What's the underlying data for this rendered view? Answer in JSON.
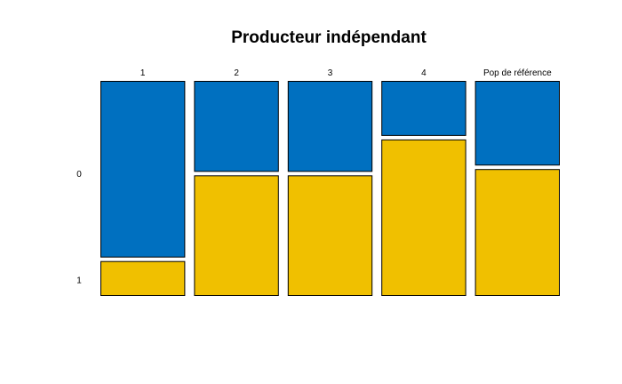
{
  "chart_data": {
    "type": "mosaic",
    "title": "Producteur indépendant",
    "categories": [
      "1",
      "2",
      "3",
      "4",
      "Pop de référence"
    ],
    "row_labels": [
      "0",
      "1"
    ],
    "series": [
      {
        "name": "0",
        "color": "#0070C0",
        "values": [
          0.835,
          0.43,
          0.43,
          0.26,
          0.4
        ]
      },
      {
        "name": "1",
        "color": "#F0C000",
        "values": [
          0.165,
          0.57,
          0.57,
          0.74,
          0.6
        ]
      }
    ],
    "column_widths": [
      0.2,
      0.2,
      0.2,
      0.2,
      0.2
    ],
    "stroke_color": "#000000",
    "legend": "none",
    "grid": false
  }
}
